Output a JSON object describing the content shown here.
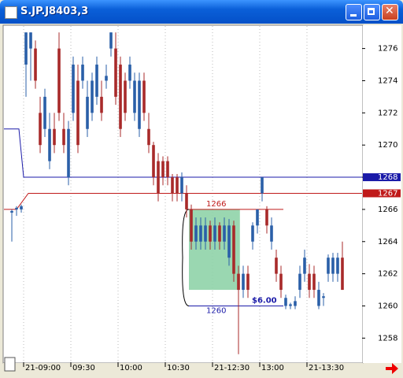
{
  "window_title": "S.JP.J8403,3",
  "chart_data": {
    "type": "candlestick",
    "xlim": [
      -1.67,
      74.17
    ],
    "ylim": [
      1256.5,
      1277.4
    ],
    "yticks": [
      1258,
      1260,
      1262,
      1264,
      1266,
      1268,
      1270,
      1272,
      1274,
      1276
    ],
    "xticks": [
      {
        "value": 3,
        "label": "21-09:00"
      },
      {
        "value": 13,
        "label": "09:30"
      },
      {
        "value": 23,
        "label": "10:00"
      },
      {
        "value": 33,
        "label": "10:30"
      },
      {
        "value": 43,
        "label": "21-12:30"
      },
      {
        "value": 53,
        "label": "13:00"
      },
      {
        "value": 63,
        "label": "21-13:30"
      }
    ],
    "up_color": "#2a5fa8",
    "down_color": "#a82a2a",
    "open": [
      1265.8,
      1266,
      1266,
      1275,
      1276,
      1276,
      1272,
      1271,
      1269,
      1271,
      1276,
      1271,
      1268,
      1272,
      1274,
      1274,
      1271,
      1272,
      1273,
      1273,
      1274,
      1276,
      1276,
      1275,
      1274,
      1274,
      1272,
      1271,
      1274,
      1271,
      1270,
      1269,
      1269,
      1269,
      1268,
      1268,
      1267,
      1267,
      1266,
      1264,
      1264,
      1264,
      1265,
      1264,
      1265,
      1264,
      1263,
      1265,
      1262,
      1261,
      1262,
      1264,
      1265,
      1267,
      1266,
      1264,
      1263,
      1262,
      1260,
      1260,
      1260,
      1261,
      1262,
      1262,
      1262,
      1260,
      1260.5,
      1262,
      1262,
      1262,
      1263
    ],
    "high": [
      1266,
      1266.2,
      1266.3,
      1277,
      1277,
      1276.5,
      1273,
      1273.5,
      1272,
      1272,
      1277,
      1272,
      1271.5,
      1275.5,
      1275,
      1275.5,
      1274,
      1274.5,
      1275.5,
      1274,
      1275,
      1277,
      1277,
      1275.5,
      1274.5,
      1275.5,
      1274.5,
      1274.5,
      1274.5,
      1272,
      1270.2,
      1269.5,
      1269.3,
      1269.3,
      1268.2,
      1268.2,
      1268.3,
      1267.5,
      1266.3,
      1265.5,
      1265.5,
      1265.5,
      1265.3,
      1265.5,
      1265.2,
      1265.5,
      1265.4,
      1265.3,
      1262.5,
      1262.5,
      1262.5,
      1265.2,
      1266,
      1268,
      1266.2,
      1265.5,
      1263.5,
      1262.5,
      1260.7,
      1260.2,
      1260.6,
      1262.5,
      1263.5,
      1262.6,
      1262.5,
      1261.5,
      1260.8,
      1263.2,
      1263.3,
      1263.3,
      1264
    ],
    "low": [
      1264,
      1265.6,
      1265.8,
      1273,
      1274,
      1273.5,
      1269.5,
      1270.5,
      1268.5,
      1269.5,
      1271.5,
      1269.5,
      1267.5,
      1271.5,
      1269.5,
      1273.5,
      1270.5,
      1271.5,
      1272.5,
      1271.5,
      1273.5,
      1275.5,
      1272.5,
      1270.5,
      1271.5,
      1273.5,
      1271.5,
      1270.5,
      1271.5,
      1269.5,
      1267.5,
      1266.5,
      1267.5,
      1267.5,
      1266.5,
      1266.5,
      1266.5,
      1265.5,
      1263.5,
      1263.5,
      1263.5,
      1263.5,
      1263.5,
      1263.5,
      1263.5,
      1263.5,
      1262.5,
      1261.5,
      1257,
      1260.5,
      1260.5,
      1263.5,
      1264.5,
      1266.5,
      1264.5,
      1263.5,
      1261.5,
      1260.5,
      1259.8,
      1259.8,
      1259.8,
      1260.5,
      1261.5,
      1260.5,
      1260.5,
      1259.8,
      1260,
      1261.5,
      1261.5,
      1261.5,
      1261
    ],
    "close": [
      1265.9,
      1266.1,
      1266.2,
      1277,
      1277,
      1274,
      1270,
      1273,
      1271,
      1270,
      1272,
      1270,
      1271,
      1275,
      1270,
      1275,
      1273,
      1274,
      1275,
      1272,
      1274.3,
      1277,
      1273,
      1271,
      1272,
      1275,
      1274,
      1274,
      1272,
      1270,
      1268,
      1267,
      1268,
      1268,
      1267,
      1267,
      1268,
      1266,
      1264,
      1265,
      1265,
      1265,
      1264,
      1265,
      1264,
      1265,
      1265,
      1262,
      1261,
      1262,
      1261,
      1265,
      1266,
      1268,
      1265,
      1265,
      1262,
      1261,
      1260.5,
      1260.1,
      1260.3,
      1262,
      1263,
      1261,
      1261,
      1261,
      1260.6,
      1263,
      1263,
      1263,
      1261
    ],
    "levels": [
      {
        "color": "#1a1aa8",
        "x": [
          -1.67,
          1.5,
          2.5,
          74.17
        ],
        "values": [
          1271,
          1271,
          1268,
          1268
        ],
        "label": "1268"
      },
      {
        "color": "#c01a1a",
        "x": [
          -1.67,
          1,
          3.5,
          74.17
        ],
        "values": [
          1266,
          1266,
          1267,
          1267
        ],
        "label": "1267"
      }
    ],
    "measure": {
      "x": [
        37.5,
        57.5
      ],
      "zone_x": [
        37.5,
        48.3
      ],
      "zone": [
        1261,
        1266
      ],
      "high": 1266,
      "low": 1260,
      "high_color": "#c01a1a",
      "low_color": "#1a1aa8",
      "zone_color": "#8fd3a8",
      "amount": "$6.00"
    }
  }
}
